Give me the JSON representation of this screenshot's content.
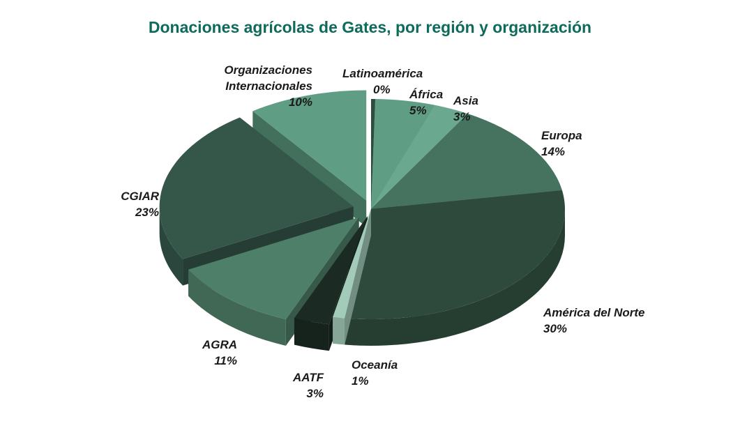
{
  "chart_data": {
    "type": "pie",
    "title": "Donaciones agrícolas de Gates, por región y organización",
    "categories": [
      "Latinoamérica",
      "África",
      "Asia",
      "Europa",
      "América del Norte",
      "Oceanía",
      "AATF",
      "AGRA",
      "CGIAR",
      "Organizaciones Internacionales"
    ],
    "values": [
      0,
      5,
      3,
      14,
      30,
      1,
      3,
      11,
      23,
      10
    ],
    "value_labels": [
      "0%",
      "5%",
      "3%",
      "14%",
      "30%",
      "1%",
      "3%",
      "11%",
      "23%",
      "10%"
    ],
    "groups": {
      "region": [
        "Latinoamérica",
        "África",
        "Asia",
        "Europa",
        "América del Norte",
        "Oceanía"
      ],
      "organizacion": [
        "AATF",
        "AGRA",
        "CGIAR",
        "Organizaciones Internacionales"
      ]
    },
    "colors": [
      "#2f4d3f",
      "#5f9e85",
      "#6aa890",
      "#46735f",
      "#2e4a3c",
      "#a3cbb9",
      "#1b2a22",
      "#4e7f68",
      "#35574a",
      "#5f9e85"
    ],
    "style": "3d-exploded-pie",
    "legend": "none (direct labels)"
  },
  "labels": [
    {
      "name": "Latinoamérica",
      "pct": "0%"
    },
    {
      "name": "África",
      "pct": "5%"
    },
    {
      "name": "Asia",
      "pct": "3%"
    },
    {
      "name": "Europa",
      "pct": "14%"
    },
    {
      "name": "América del Norte",
      "pct": "30%"
    },
    {
      "name": "Oceanía",
      "pct": "1%"
    },
    {
      "name": "AATF",
      "pct": "3%"
    },
    {
      "name": "AGRA",
      "pct": "11%"
    },
    {
      "name": "CGIAR",
      "pct": "23%"
    },
    {
      "name_l1": "Organizaciones",
      "name_l2": "Internacionales",
      "pct": "10%"
    }
  ]
}
